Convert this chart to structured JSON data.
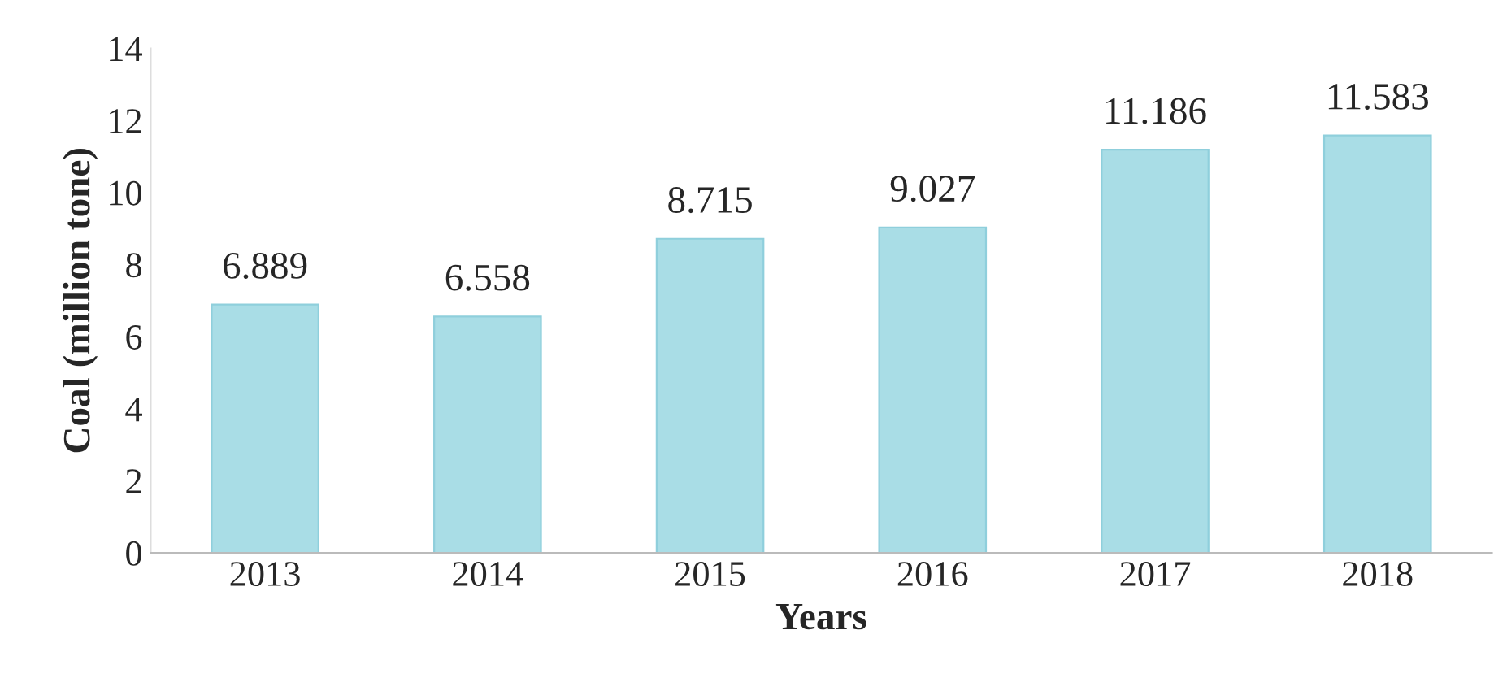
{
  "chart_data": {
    "type": "bar",
    "xlabel": "Years",
    "ylabel": "Coal (million tone)",
    "categories": [
      "2013",
      "2014",
      "2015",
      "2016",
      "2017",
      "2018"
    ],
    "values": [
      6.889,
      6.558,
      8.715,
      9.027,
      11.186,
      11.583
    ],
    "color": "#a9dde6",
    "ylim": [
      0,
      14
    ],
    "yticks": [
      0,
      2,
      4,
      6,
      8,
      10,
      12,
      14
    ],
    "data_labels": true,
    "grid": false,
    "legend": false
  }
}
